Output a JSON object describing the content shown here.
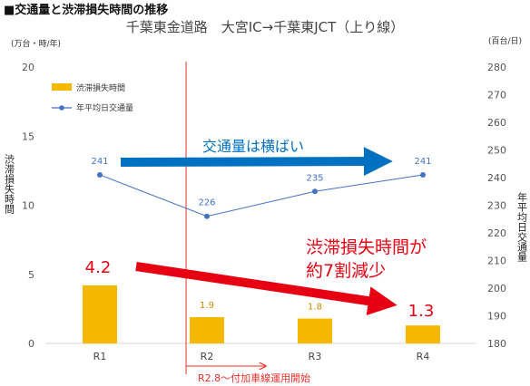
{
  "header": {
    "title": "■交通量と渋滞損失時間の推移"
  },
  "chart_data": {
    "type": "bar",
    "title": "千葉東金道路　大宮IC→千葉東JCT（上り線）",
    "categories": [
      "R1",
      "R2",
      "R3",
      "R4"
    ],
    "left_axis": {
      "unit": "(万台・時/年)",
      "label": "渋滞損失時間",
      "ylim": [
        0,
        20
      ],
      "ticks": [
        "0",
        "5",
        "10",
        "15",
        "20"
      ]
    },
    "right_axis": {
      "unit": "(百台/日)",
      "label": "年平均日交通量",
      "ylim": [
        180,
        280
      ],
      "ticks": [
        "180",
        "190",
        "200",
        "210",
        "220",
        "230",
        "240",
        "250",
        "260",
        "270",
        "280"
      ]
    },
    "grid": false,
    "legend": {
      "placement": "top-left",
      "entries": [
        {
          "name": "渋滞損失時間",
          "marker": "bar"
        },
        {
          "name": "年平均日交通量",
          "marker": "line"
        }
      ]
    },
    "series": [
      {
        "name": "渋滞損失時間",
        "type": "bar",
        "axis": "left",
        "color": "#f5b800",
        "values": [
          4.2,
          1.9,
          1.8,
          1.3
        ],
        "labels": [
          "4.2",
          "1.9",
          "1.8",
          "1.3"
        ]
      },
      {
        "name": "年平均日交通量",
        "type": "line",
        "axis": "right",
        "color": "#4472c4",
        "values": [
          241,
          226,
          235,
          241
        ],
        "labels": [
          "241",
          "226",
          "235",
          "241"
        ]
      }
    ],
    "annotations": {
      "traffic_flat": "交通量は横ばい",
      "loss_reduction_line1": "渋滞損失時間が",
      "loss_reduction_line2": "約7割減少",
      "lane_start": "R2.8～付加車線運用開始"
    },
    "colors": {
      "bar": "#f5b800",
      "line": "#4472c4",
      "blue_arrow": "#0070c0",
      "red_arrow": "#e60012",
      "marker_line": "#e8302a"
    }
  }
}
